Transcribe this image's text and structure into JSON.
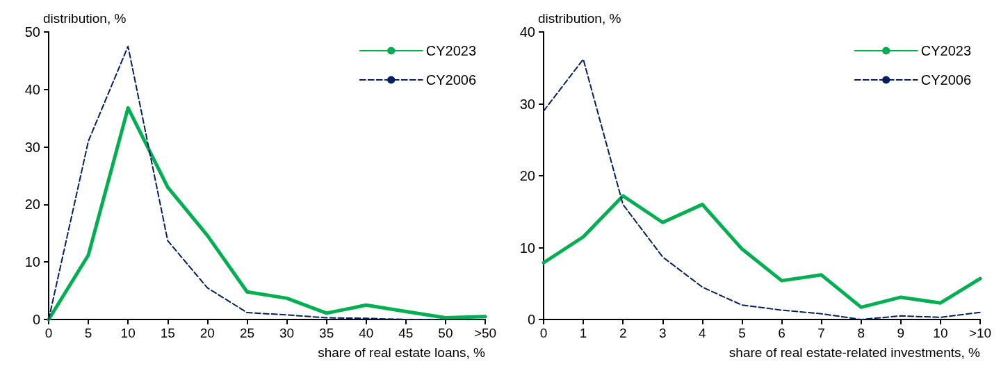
{
  "chart_data": [
    {
      "type": "line",
      "xlabel": "share of real estate loans, %",
      "ylabel": "distribution, %",
      "categories": [
        "0",
        "5",
        "10",
        "15",
        "20",
        "25",
        "30",
        "35",
        "40",
        "45",
        "50",
        ">50"
      ],
      "series": [
        {
          "name": "CY2023",
          "color": "#00b050",
          "line_style": "solid",
          "values": [
            0,
            11.2,
            36.8,
            23,
            14.6,
            4.8,
            3.7,
            1.1,
            2.5,
            1.4,
            0.3,
            0.5
          ]
        },
        {
          "name": "CY2006",
          "color": "#002060",
          "line_style": "dashed",
          "values": [
            0,
            31,
            47.5,
            13.7,
            5.5,
            1.2,
            0.8,
            0.3,
            0.2,
            0,
            0,
            0
          ]
        }
      ],
      "ylim": [
        0,
        50
      ],
      "yticks": [
        0,
        10,
        20,
        30,
        40,
        50
      ],
      "grid": false,
      "legend": "top right",
      "marker": "none"
    },
    {
      "type": "line",
      "xlabel": "share of real estate-related investments, %",
      "ylabel": "distribution, %",
      "categories": [
        "0",
        "1",
        "2",
        "3",
        "4",
        "5",
        "6",
        "7",
        "8",
        "9",
        "10",
        ">10"
      ],
      "series": [
        {
          "name": "CY2023",
          "color": "#00b050",
          "line_style": "solid",
          "values": [
            7.9,
            11.5,
            17.2,
            13.5,
            16,
            9.8,
            5.4,
            6.2,
            1.7,
            3.1,
            2.3,
            5.7
          ]
        },
        {
          "name": "CY2006",
          "color": "#002060",
          "line_style": "dashed",
          "values": [
            29,
            36.2,
            16,
            8.7,
            4.5,
            2,
            1.3,
            0.8,
            0,
            0.5,
            0.3,
            1.0
          ]
        }
      ],
      "ylim": [
        0,
        40
      ],
      "yticks": [
        0,
        10,
        20,
        30,
        40
      ],
      "grid": false,
      "legend": "top right",
      "marker": "none"
    }
  ]
}
